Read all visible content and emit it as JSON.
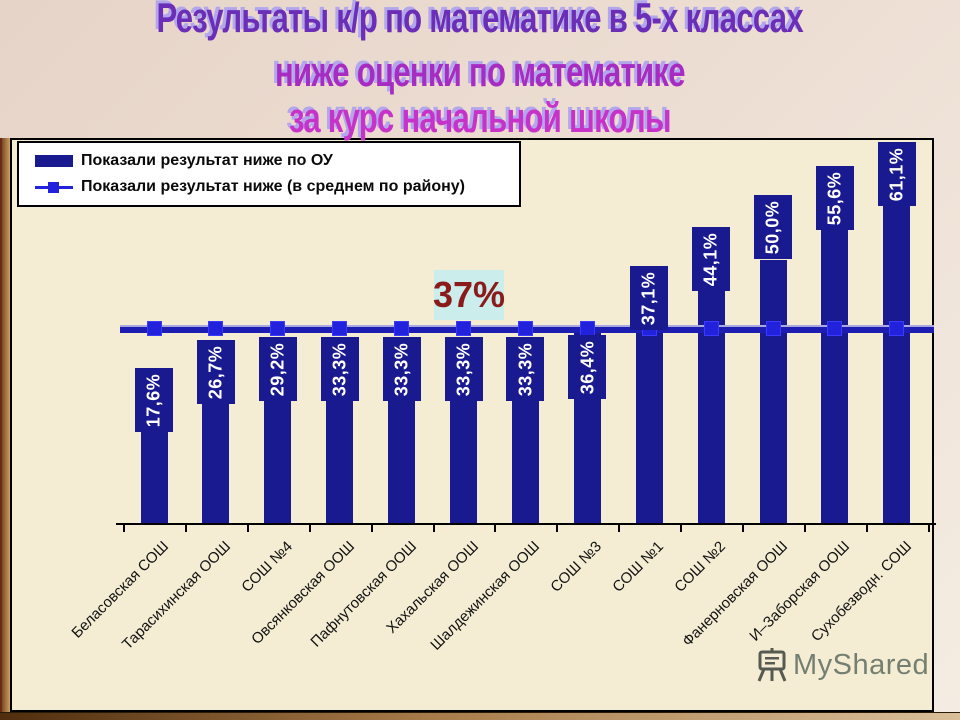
{
  "slide": {
    "title_lines": [
      {
        "text": "Результаты к/р по математике в 5-х классах",
        "color": "#6b2eb6"
      },
      {
        "text": "ниже оценки по математике",
        "color": "#a72cc2"
      },
      {
        "text": "за курс начальной школы",
        "color": "#c733c9"
      }
    ]
  },
  "legend": {
    "items": [
      {
        "label": "Показали результат ниже по ОУ",
        "swatch": "bar-swatch",
        "color": "#191990"
      },
      {
        "label": "Показали результат ниже (в среднем по району)",
        "swatch": "line-marker-swatch",
        "color": "#2222dc"
      }
    ]
  },
  "chart_data": {
    "type": "bar",
    "title": "Результаты к/р по математике в 5-х классах ниже оценки по математике за курс начальной школы",
    "categories": [
      "Беласовская СОШ",
      "Тарасихинская ООШ",
      "СОШ №4",
      "Овсянковская ООШ",
      "Пафнутовская ООШ",
      "Хахальская ООШ",
      "Шалдежинская ООШ",
      "СОШ №3",
      "СОШ №1",
      "СОШ №2",
      "Фанерновская ООШ",
      "И–Заборская ООШ",
      "Сухобезводн. СОШ"
    ],
    "series": [
      {
        "name": "Показали результат ниже по ОУ",
        "type": "bar",
        "values": [
          17.6,
          26.7,
          29.2,
          33.3,
          33.3,
          33.3,
          33.3,
          36.4,
          37.1,
          44.1,
          50.0,
          55.6,
          61.1
        ]
      },
      {
        "name": "Показали результат ниже (в среднем по району)",
        "type": "line",
        "values": [
          37,
          37,
          37,
          37,
          37,
          37,
          37,
          37,
          37,
          37,
          37,
          37,
          37
        ]
      }
    ],
    "value_labels": [
      "17,6%",
      "26,7%",
      "29,2%",
      "33,3%",
      "33,3%",
      "33,3%",
      "33,3%",
      "36,4%",
      "37,1%",
      "44,1%",
      "50,0%",
      "55,6%",
      "61,1%"
    ],
    "threshold_value": 37,
    "threshold_label": "37%",
    "bar_color": "#191990",
    "line_color": "#1d1db2",
    "xlabel": "",
    "ylabel": "",
    "ylim": [
      0,
      72
    ],
    "grid": false,
    "legend_position": "top-left"
  },
  "watermark": {
    "text": "MyShared",
    "icon": "easel-icon"
  }
}
